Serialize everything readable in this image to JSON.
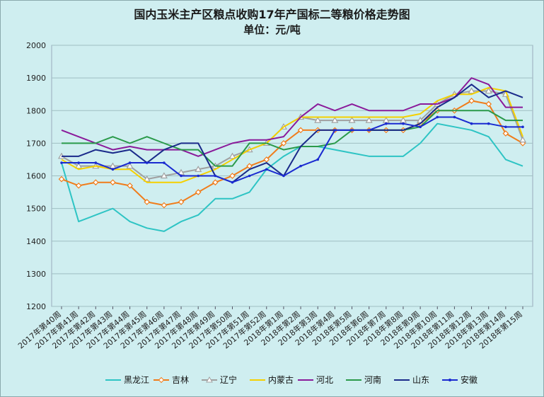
{
  "chart_data": {
    "type": "line",
    "title": "国内玉米主产区粮点收购17年产国标二等粮价格走势图",
    "subtitle": "单位：元/吨",
    "categories": [
      "2017年第40周",
      "2017年第41周",
      "2017年第42周",
      "2017年第43周",
      "2017年第44周",
      "2017年第45周",
      "2017年第46周",
      "2017年第47周",
      "2017年第48周",
      "2017年第49周",
      "2017年第50周",
      "2017年第51周",
      "2017年第52周",
      "2018年第1周",
      "2018年第2周",
      "2018年第3周",
      "2018年第4周",
      "2018年第5周",
      "2018年第6周",
      "2018年第7周",
      "2018年第8周",
      "2018年第9周",
      "2018年第10周",
      "2018年第11周",
      "2018年第12周",
      "2018年第13周",
      "2018年第14周",
      "2018年第15周"
    ],
    "tick_labels": [
      "2017年第40周",
      "2017年第41周",
      "2017年第42周",
      "2017年第43周",
      "2017年第44周",
      "2017年第45周",
      "2017年第46周",
      "2017年第47周",
      "2017年第48周",
      "2017年第49周",
      "2017年第50周",
      "2017年第51周",
      "2017年第52周",
      "2018年第1周",
      "2018年第2周",
      "2018年第3周",
      "2018年第4周",
      "2018年第5周",
      "2018年第6周",
      "2018年第7周",
      "2018年第8周",
      "2018年第9周",
      "2018年第10周",
      "2018年第11周",
      "2018年第12周",
      "2018年第13周",
      "2018年第14周",
      "2018年第15周"
    ],
    "ylim": [
      1200,
      2000
    ],
    "yticks": [
      1200,
      1300,
      1400,
      1500,
      1600,
      1700,
      1800,
      1900,
      2000
    ],
    "grid": true,
    "legend_position": "bottom",
    "series": [
      {
        "name": "黑龙江",
        "color": "#2ec4c4",
        "marker": "none",
        "values": [
          1640,
          1460,
          1480,
          1500,
          1460,
          1440,
          1430,
          1460,
          1480,
          1530,
          1530,
          1550,
          1620,
          1660,
          1690,
          1690,
          1680,
          1670,
          1660,
          1660,
          1660,
          1700,
          1760,
          1750,
          1740,
          1720,
          1650,
          1630
        ]
      },
      {
        "name": "吉林",
        "color": "#f07c1a",
        "marker": "diamond",
        "values": [
          1590,
          1570,
          1580,
          1580,
          1570,
          1520,
          1510,
          1520,
          1550,
          1580,
          1600,
          1630,
          1650,
          1700,
          1740,
          1740,
          1740,
          1740,
          1740,
          1740,
          1740,
          1760,
          1800,
          1800,
          1830,
          1820,
          1730,
          1700
        ]
      },
      {
        "name": "辽宁",
        "color": "#a0a0a0",
        "marker": "triangle",
        "values": [
          1660,
          1630,
          1630,
          1630,
          1630,
          1590,
          1600,
          1610,
          1620,
          1630,
          1660,
          1680,
          1700,
          1750,
          1780,
          1770,
          1770,
          1770,
          1770,
          1770,
          1770,
          1770,
          1820,
          1850,
          1860,
          1860,
          1850,
          1710
        ]
      },
      {
        "name": "内蒙古",
        "color": "#f5d000",
        "marker": "none",
        "values": [
          1650,
          1620,
          1630,
          1620,
          1620,
          1580,
          1580,
          1580,
          1600,
          1620,
          1650,
          1680,
          1700,
          1750,
          1780,
          1780,
          1780,
          1780,
          1780,
          1780,
          1780,
          1790,
          1830,
          1850,
          1850,
          1870,
          1860,
          1720
        ]
      },
      {
        "name": "河北",
        "color": "#8a1a9a",
        "marker": "none",
        "values": [
          1740,
          1720,
          1700,
          1680,
          1690,
          1680,
          1680,
          1680,
          1660,
          1680,
          1700,
          1710,
          1710,
          1720,
          1780,
          1820,
          1800,
          1820,
          1800,
          1800,
          1800,
          1820,
          1820,
          1840,
          1900,
          1880,
          1810,
          1810
        ]
      },
      {
        "name": "河南",
        "color": "#2a9a4a",
        "marker": "none",
        "values": [
          1700,
          1700,
          1700,
          1720,
          1700,
          1720,
          1700,
          1680,
          1680,
          1630,
          1630,
          1700,
          1700,
          1680,
          1690,
          1690,
          1700,
          1740,
          1740,
          1740,
          1740,
          1750,
          1800,
          1800,
          1800,
          1800,
          1770,
          1770
        ]
      },
      {
        "name": "山东",
        "color": "#1a2a8a",
        "marker": "none",
        "values": [
          1660,
          1660,
          1680,
          1670,
          1680,
          1640,
          1680,
          1700,
          1700,
          1600,
          1580,
          1620,
          1640,
          1600,
          1690,
          1740,
          1740,
          1740,
          1740,
          1740,
          1740,
          1760,
          1810,
          1840,
          1880,
          1840,
          1860,
          1840
        ]
      },
      {
        "name": "安徽",
        "color": "#1a2ad0",
        "marker": "dot",
        "values": [
          1640,
          1640,
          1640,
          1620,
          1640,
          1640,
          1640,
          1600,
          1600,
          1600,
          1580,
          1600,
          1620,
          1600,
          1630,
          1650,
          1740,
          1740,
          1740,
          1760,
          1760,
          1750,
          1780,
          1780,
          1760,
          1760,
          1750,
          1750
        ]
      }
    ]
  }
}
